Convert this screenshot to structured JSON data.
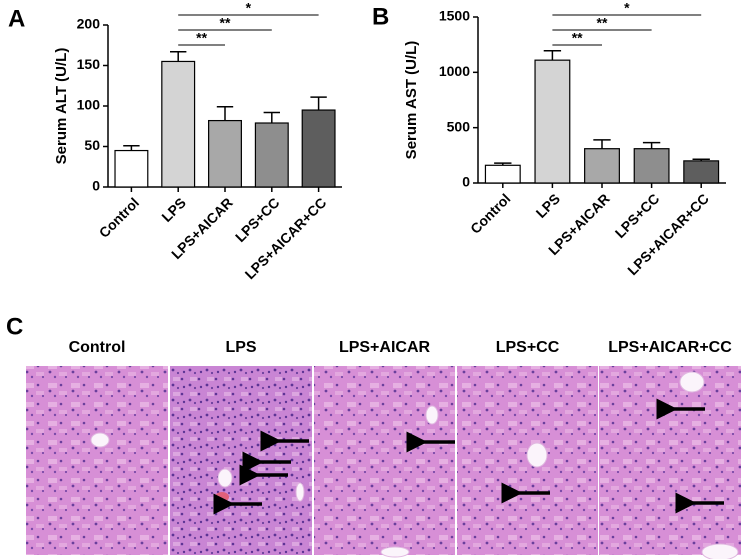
{
  "chart_data": [
    {
      "type": "bar",
      "panel_label": "A",
      "y_label": "Serum ALT (U/L)",
      "categories": [
        "Control",
        "LPS",
        "LPS+AICAR",
        "LPS+CC",
        "LPS+AICAR+CC"
      ],
      "values": [
        45,
        155,
        82,
        79,
        95
      ],
      "errors": [
        6,
        12,
        17,
        13,
        16
      ],
      "colors": [
        "#ffffff",
        "#d4d4d4",
        "#a8a8a8",
        "#8e8e8e",
        "#5e5e5e"
      ],
      "ylim": [
        0,
        200
      ],
      "yticks": [
        0,
        50,
        100,
        150,
        200
      ],
      "significance": [
        {
          "from": "LPS",
          "to": "LPS+AICAR",
          "label": "**"
        },
        {
          "from": "LPS",
          "to": "LPS+CC",
          "label": "**"
        },
        {
          "from": "LPS",
          "to": "LPS+AICAR+CC",
          "label": "*"
        }
      ]
    },
    {
      "type": "bar",
      "panel_label": "B",
      "y_label": "Serum AST (U/L)",
      "categories": [
        "Control",
        "LPS",
        "LPS+AICAR",
        "LPS+CC",
        "LPS+AICAR+CC"
      ],
      "values": [
        160,
        1110,
        310,
        310,
        200
      ],
      "errors": [
        20,
        85,
        80,
        55,
        15
      ],
      "colors": [
        "#ffffff",
        "#d4d4d4",
        "#a8a8a8",
        "#8e8e8e",
        "#5e5e5e"
      ],
      "ylim": [
        0,
        1500
      ],
      "yticks": [
        0,
        500,
        1000,
        1500
      ],
      "significance": [
        {
          "from": "LPS",
          "to": "LPS+AICAR",
          "label": "**"
        },
        {
          "from": "LPS",
          "to": "LPS+CC",
          "label": "**"
        },
        {
          "from": "LPS",
          "to": "LPS+AICAR+CC",
          "label": "*"
        }
      ]
    }
  ],
  "histology": {
    "panel_label": "C",
    "titles": [
      "Control",
      "LPS",
      "LPS+AICAR",
      "LPS+CC",
      "LPS+AICAR+CC"
    ]
  }
}
